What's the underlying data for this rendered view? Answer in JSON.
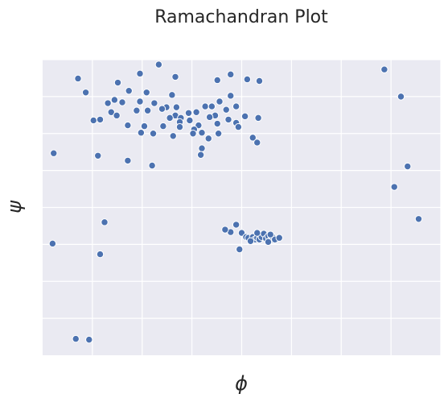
{
  "chart_data": {
    "type": "scatter",
    "title": "Ramachandran Plot",
    "xlabel": "ϕ",
    "ylabel": "ψ",
    "xlim": [
      -180,
      180
    ],
    "ylim": [
      -180,
      180
    ],
    "xticks": [
      -135,
      -90,
      -45,
      0,
      45,
      90,
      135,
      180
    ],
    "yticks": [
      -135,
      -90,
      -45,
      0,
      45,
      90,
      135,
      180
    ],
    "grid": true,
    "legend": "none",
    "color": "#4c72b0",
    "background": "#eaeaf2",
    "points": [
      {
        "x": -75,
        "y": 174
      },
      {
        "x": -92,
        "y": 163
      },
      {
        "x": -60,
        "y": 159
      },
      {
        "x": -112,
        "y": 152
      },
      {
        "x": -102,
        "y": 142
      },
      {
        "x": -86,
        "y": 140
      },
      {
        "x": -63,
        "y": 137
      },
      {
        "x": -115,
        "y": 131
      },
      {
        "x": -108,
        "y": 128
      },
      {
        "x": -92,
        "y": 129
      },
      {
        "x": -79,
        "y": 127
      },
      {
        "x": -68,
        "y": 122
      },
      {
        "x": -59,
        "y": 122
      },
      {
        "x": -95,
        "y": 118
      },
      {
        "x": -118,
        "y": 116
      },
      {
        "x": -85,
        "y": 118
      },
      {
        "x": -60,
        "y": 112
      },
      {
        "x": -55,
        "y": 109
      },
      {
        "x": -72,
        "y": 120
      },
      {
        "x": -48,
        "y": 115
      },
      {
        "x": -56,
        "y": 104
      },
      {
        "x": -65,
        "y": 109
      },
      {
        "x": -47,
        "y": 106
      },
      {
        "x": -41,
        "y": 116
      },
      {
        "x": -39,
        "y": 100
      },
      {
        "x": -33,
        "y": 123
      },
      {
        "x": -27,
        "y": 123
      },
      {
        "x": -24,
        "y": 112
      },
      {
        "x": -29,
        "y": 110
      },
      {
        "x": -22,
        "y": 102
      },
      {
        "x": -36,
        "y": 91
      },
      {
        "x": -43,
        "y": 95
      },
      {
        "x": -10,
        "y": 162
      },
      {
        "x": 5,
        "y": 156
      },
      {
        "x": 16,
        "y": 154
      },
      {
        "x": -10,
        "y": 136
      },
      {
        "x": -20,
        "y": 129
      },
      {
        "x": -14,
        "y": 119
      },
      {
        "x": -5,
        "y": 123
      },
      {
        "x": -12,
        "y": 107
      },
      {
        "x": -5,
        "y": 103
      },
      {
        "x": -3,
        "y": 98
      },
      {
        "x": 3,
        "y": 111
      },
      {
        "x": -21,
        "y": 90
      },
      {
        "x": -30,
        "y": 84
      },
      {
        "x": -36,
        "y": 72
      },
      {
        "x": -37,
        "y": 64
      },
      {
        "x": -56,
        "y": 98
      },
      {
        "x": -62,
        "y": 87
      },
      {
        "x": -71,
        "y": 99
      },
      {
        "x": -80,
        "y": 90
      },
      {
        "x": -88,
        "y": 99
      },
      {
        "x": -91,
        "y": 91
      },
      {
        "x": -103,
        "y": 100
      },
      {
        "x": -113,
        "y": 112
      },
      {
        "x": -121,
        "y": 127
      },
      {
        "x": -134,
        "y": 106
      },
      {
        "x": -128,
        "y": 107
      },
      {
        "x": -141,
        "y": 140
      },
      {
        "x": -148,
        "y": 157
      },
      {
        "x": -130,
        "y": 63
      },
      {
        "x": -170,
        "y": 66
      },
      {
        "x": -81,
        "y": 51
      },
      {
        "x": -103,
        "y": 57
      },
      {
        "x": -44,
        "y": 90
      },
      {
        "x": -22,
        "y": 155
      },
      {
        "x": 15,
        "y": 109
      },
      {
        "x": 10,
        "y": 85
      },
      {
        "x": 14,
        "y": 79
      },
      {
        "x": 144,
        "y": 135
      },
      {
        "x": 129,
        "y": 168
      },
      {
        "x": 138,
        "y": 25
      },
      {
        "x": 150,
        "y": 50
      },
      {
        "x": 160,
        "y": -14
      },
      {
        "x": -124,
        "y": -18
      },
      {
        "x": -10,
        "y": -30
      },
      {
        "x": -15,
        "y": -27
      },
      {
        "x": 0,
        "y": -31
      },
      {
        "x": 4,
        "y": -36
      },
      {
        "x": 6,
        "y": -37
      },
      {
        "x": 10,
        "y": -36
      },
      {
        "x": 12,
        "y": -39
      },
      {
        "x": 14,
        "y": -37
      },
      {
        "x": 16,
        "y": -39
      },
      {
        "x": 18,
        "y": -36
      },
      {
        "x": 20,
        "y": -32
      },
      {
        "x": 22,
        "y": -38
      },
      {
        "x": 24,
        "y": -35
      },
      {
        "x": 26,
        "y": -40
      },
      {
        "x": 28,
        "y": -36
      },
      {
        "x": 30,
        "y": -39
      },
      {
        "x": 14,
        "y": -31
      },
      {
        "x": 26,
        "y": -33
      },
      {
        "x": 34,
        "y": -37
      },
      {
        "x": 8,
        "y": -41
      },
      {
        "x": 24,
        "y": -42
      },
      {
        "x": -2,
        "y": -51
      },
      {
        "x": -5,
        "y": -21
      },
      {
        "x": -171,
        "y": -44
      },
      {
        "x": -128,
        "y": -57
      },
      {
        "x": -150,
        "y": -160
      },
      {
        "x": -138,
        "y": -161
      }
    ]
  }
}
